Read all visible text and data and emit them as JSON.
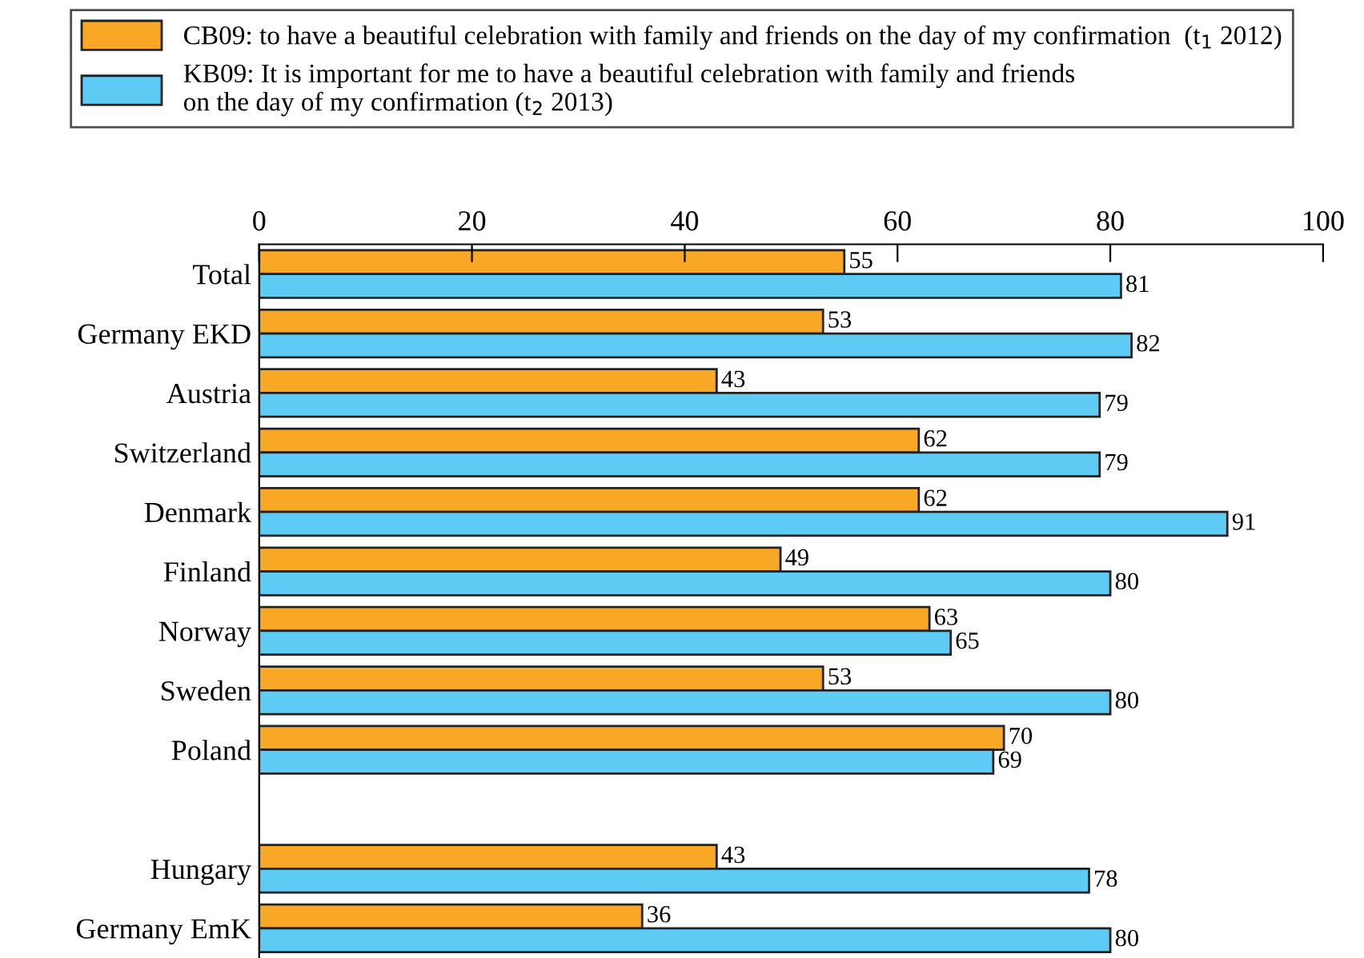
{
  "chart_data": {
    "type": "bar",
    "orientation": "horizontal",
    "categories": [
      "Total",
      "Germany EKD",
      "Austria",
      "Switzerland",
      "Denmark",
      "Finland",
      "Norway",
      "Sweden",
      "Poland",
      null,
      "Hungary",
      "Germany EmK"
    ],
    "series": [
      {
        "name": "CB09: to have a beautiful celebration with family and friends on the day of my confirmation  (t$_{1}$ 2012)",
        "color": "#f8a824",
        "values": [
          55,
          53,
          43,
          62,
          62,
          49,
          63,
          53,
          70,
          null,
          43,
          36
        ]
      },
      {
        "name": "KB09: It is important for me to have a beautiful celebration with family and friends\non the day of my confirmation (t$_{2}$ 2013)",
        "color": "#5ecbf5",
        "values": [
          81,
          82,
          79,
          79,
          91,
          80,
          65,
          80,
          69,
          null,
          78,
          80
        ]
      }
    ],
    "xlim": [
      0,
      100
    ],
    "xticks": [
      0,
      20,
      40,
      60,
      80,
      100
    ],
    "data_labels": true,
    "grid": false,
    "legend": "top"
  }
}
